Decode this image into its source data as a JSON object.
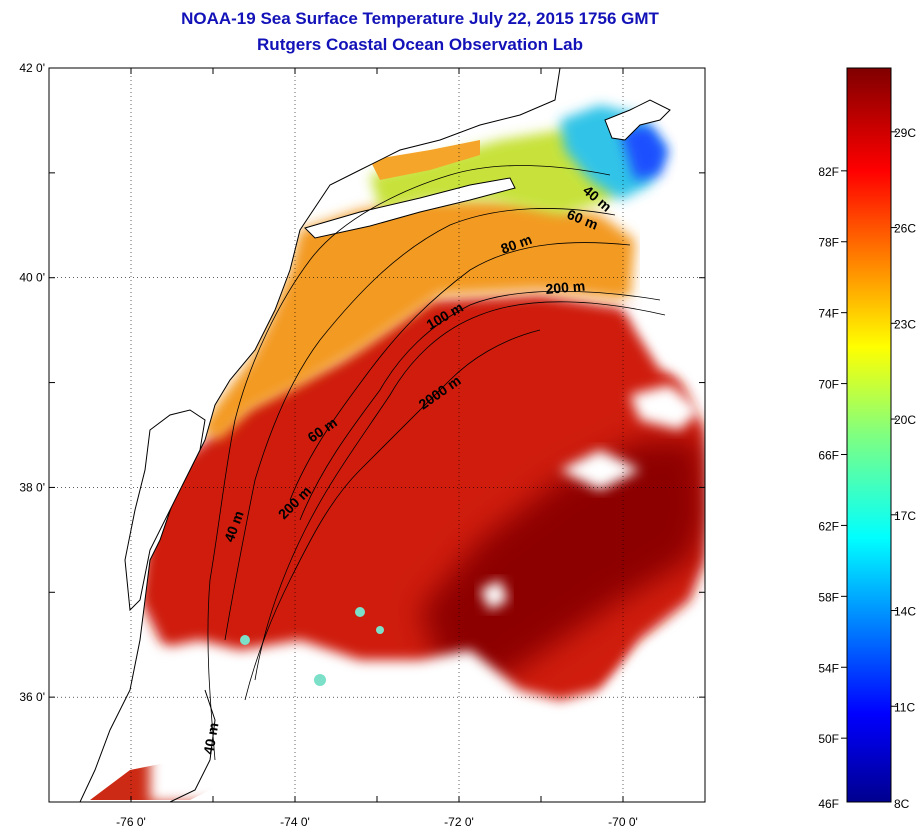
{
  "header": {
    "title": "NOAA-19 Sea Surface Temperature July 22, 2015 1756 GMT",
    "subtitle": "Rutgers Coastal Ocean Observation Lab"
  },
  "map": {
    "lat_labels": [
      "42 0'",
      "40 0'",
      "38 0'",
      "36 0'"
    ],
    "lon_labels": [
      "-76 0'",
      "-74 0'",
      "-72 0'",
      "-70 0'"
    ],
    "lat_values": [
      42,
      40,
      38,
      36
    ],
    "lon_values": [
      -76,
      -74,
      -72,
      -70
    ],
    "extent": {
      "lon_min": -77.0,
      "lon_max": -69.0,
      "lat_min": 35.0,
      "lat_max": 42.0
    },
    "grid": "dotted",
    "isobath_labels": [
      "40 m",
      "60 m",
      "80 m",
      "200 m",
      "100 m",
      "2000 m",
      "60 m",
      "200 m",
      "40 m",
      "40 m"
    ],
    "colors": {
      "land_background": "#ffffff",
      "coastline": "#000000",
      "cloud_mask": "#ffffff",
      "warm_offshore": "#c41a0f",
      "gulf_stream": "#8e0404",
      "shelf_orange": "#f5a020",
      "cold_nantucket": "#1a4aff"
    }
  },
  "colorbar": {
    "fahrenheit_labels": [
      "82F",
      "78F",
      "74F",
      "70F",
      "66F",
      "62F",
      "58F",
      "54F",
      "50F",
      "46F"
    ],
    "fahrenheit_values": [
      82,
      78,
      74,
      70,
      66,
      62,
      58,
      54,
      50,
      46
    ],
    "celsius_labels": [
      "29C",
      "26C",
      "23C",
      "20C",
      "17C",
      "14C",
      "11C",
      "8C"
    ],
    "celsius_values": [
      29,
      26,
      23,
      20,
      17,
      14,
      11,
      8
    ],
    "range_c": [
      8,
      31
    ],
    "colormap": "jet"
  }
}
